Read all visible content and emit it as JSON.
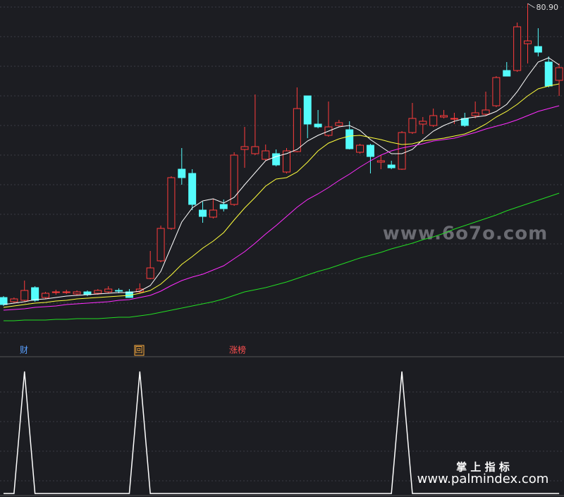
{
  "chart_data": {
    "type": "candlestick",
    "ylim": [
      30.9,
      81.4
    ],
    "up_color": "#ff3c3c",
    "down_color": "#54fcfc",
    "open": [
      39.2,
      38.6,
      38.8,
      40.6,
      39.2,
      39.9,
      39.9,
      39.7,
      40.0,
      39.8,
      40.0,
      40.2,
      40.0,
      40.0,
      41.9,
      44.4,
      49.0,
      57.4,
      56.8,
      51.6,
      50.6,
      52.4,
      52.4,
      60.2,
      59.6,
      58.8,
      59.6,
      57.0,
      59.9,
      67.8,
      63.8,
      62.2,
      63.6,
      63.0,
      59.8,
      60.8,
      58.4,
      58.0,
      57.4,
      62.6,
      63.8,
      63.6,
      64.8,
      64.6,
      64.6,
      65.0,
      65.2,
      66.4,
      71.4,
      71.4,
      75.2,
      74.8,
      72.6,
      70.0
    ],
    "high": [
      39.4,
      39.2,
      41.6,
      40.8,
      40.0,
      40.3,
      40.3,
      40.2,
      40.2,
      40.4,
      40.8,
      40.5,
      40.4,
      41.2,
      45.8,
      49.4,
      56.4,
      60.4,
      57.4,
      52.8,
      53.2,
      53.1,
      59.8,
      63.4,
      68.0,
      60.9,
      60.2,
      60.4,
      69.0,
      67.8,
      65.8,
      67.0,
      64.4,
      64.2,
      61.0,
      61.0,
      59.4,
      58.6,
      62.8,
      66.8,
      64.8,
      66.0,
      65.8,
      65.4,
      65.4,
      67.0,
      68.4,
      70.6,
      72.6,
      78.2,
      80.9,
      77.4,
      73.4,
      72.4
    ],
    "low": [
      38.0,
      38.4,
      38.6,
      38.6,
      39.0,
      39.6,
      39.7,
      39.5,
      39.4,
      39.6,
      39.8,
      39.8,
      39.2,
      39.8,
      41.8,
      44.2,
      48.8,
      55.2,
      51.6,
      49.8,
      50.4,
      51.4,
      52.2,
      57.6,
      59.4,
      58.6,
      57.8,
      56.8,
      59.8,
      61.8,
      63.2,
      62.0,
      63.4,
      60.2,
      59.6,
      56.8,
      57.4,
      57.4,
      57.3,
      62.4,
      62.4,
      63.4,
      64.6,
      63.8,
      63.4,
      64.6,
      65.0,
      66.2,
      70.6,
      71.2,
      72.4,
      73.4,
      69.0,
      67.8
    ],
    "close": [
      38.2,
      39.0,
      40.2,
      38.8,
      39.8,
      40.0,
      40.0,
      40.0,
      39.6,
      40.2,
      40.4,
      40.1,
      39.2,
      40.4,
      43.4,
      49.0,
      56.2,
      56.2,
      52.4,
      50.7,
      51.6,
      51.8,
      59.4,
      60.6,
      60.6,
      60.0,
      58.0,
      60.0,
      66.0,
      63.8,
      63.4,
      63.4,
      64.0,
      60.3,
      60.8,
      59.2,
      58.6,
      57.6,
      62.6,
      64.6,
      64.2,
      65.0,
      65.0,
      64.6,
      63.6,
      65.4,
      65.8,
      70.4,
      70.6,
      77.6,
      75.6,
      74.0,
      69.2,
      71.8
    ],
    "lines": [
      {
        "color": "#ffffff",
        "values": [
          38.2,
          38.4,
          38.6,
          38.9,
          39.0,
          39.2,
          39.4,
          39.5,
          39.6,
          39.7,
          39.8,
          39.9,
          39.9,
          40.1,
          40.9,
          42.9,
          46.4,
          49.9,
          51.9,
          52.9,
          53.2,
          52.6,
          53.4,
          55.2,
          56.9,
          58.6,
          59.2,
          59.6,
          60.2,
          61.4,
          62.2,
          62.8,
          63.4,
          63.6,
          62.9,
          61.6,
          60.6,
          59.6,
          59.6,
          60.2,
          61.6,
          62.8,
          63.6,
          64.2,
          64.6,
          64.8,
          65.0,
          65.6,
          66.6,
          68.4,
          70.6,
          72.6,
          73.2,
          72.2
        ]
      },
      {
        "color": "#ffff3c",
        "values": [
          37.8,
          38.0,
          38.2,
          38.4,
          38.5,
          38.7,
          38.8,
          39.0,
          39.1,
          39.2,
          39.3,
          39.4,
          39.5,
          39.8,
          40.2,
          41.1,
          42.4,
          43.9,
          45.0,
          46.2,
          47.2,
          48.4,
          50.2,
          51.9,
          53.4,
          55.0,
          56.0,
          56.2,
          57.0,
          58.4,
          60.0,
          61.1,
          61.7,
          62.1,
          62.2,
          61.9,
          61.6,
          61.2,
          60.9,
          61.0,
          61.4,
          61.6,
          61.8,
          62.1,
          62.4,
          63.0,
          63.8,
          64.8,
          65.6,
          66.6,
          67.8,
          68.8,
          69.2,
          69.5
        ]
      },
      {
        "color": "#ff2cff",
        "values": [
          37.4,
          37.5,
          37.6,
          37.8,
          37.9,
          38.0,
          38.2,
          38.3,
          38.4,
          38.5,
          38.6,
          38.8,
          38.9,
          39.2,
          39.5,
          40.1,
          40.9,
          41.6,
          42.1,
          42.5,
          43.1,
          43.7,
          44.7,
          45.7,
          46.9,
          48.2,
          49.4,
          50.7,
          52.0,
          53.1,
          53.9,
          54.8,
          55.8,
          56.7,
          57.7,
          58.6,
          59.4,
          60.0,
          60.4,
          60.7,
          61.0,
          61.4,
          61.6,
          61.8,
          62.2,
          62.6,
          63.1,
          63.5,
          63.9,
          64.4,
          65.0,
          65.6,
          66.0,
          66.4
        ]
      },
      {
        "color": "#22dd22",
        "values": [
          35.9,
          35.9,
          36.0,
          36.0,
          36.0,
          36.1,
          36.1,
          36.2,
          36.2,
          36.2,
          36.3,
          36.4,
          36.4,
          36.6,
          36.8,
          37.1,
          37.4,
          37.7,
          38.0,
          38.3,
          38.6,
          39.0,
          39.5,
          40.0,
          40.3,
          40.6,
          41.0,
          41.4,
          41.9,
          42.4,
          42.9,
          43.3,
          43.8,
          44.3,
          44.8,
          45.2,
          45.6,
          46.1,
          46.5,
          46.9,
          47.4,
          47.8,
          48.3,
          48.9,
          49.4,
          49.9,
          50.4,
          50.9,
          51.5,
          52.0,
          52.5,
          53.0,
          53.5,
          54.0
        ]
      }
    ],
    "max_label": {
      "value": 80.9,
      "label": "80.90"
    },
    "markers": [
      {
        "text": "财",
        "color": "#5aa0ff"
      },
      {
        "text": "回",
        "color": "#ffb040"
      },
      {
        "text": "涨榜",
        "color": "#ff5050"
      }
    ],
    "signal_panel": {
      "type": "line",
      "color": "#ffffff",
      "ylim": [
        0,
        1
      ],
      "values": [
        0,
        0,
        1,
        0,
        0,
        0,
        0,
        0,
        0,
        0,
        0,
        0,
        0,
        1,
        0,
        0,
        0,
        0,
        0,
        0,
        0,
        0,
        0,
        0,
        0,
        0,
        0,
        0,
        0,
        0,
        0,
        0,
        0,
        0,
        0,
        0,
        0,
        0,
        1,
        0,
        0,
        0,
        0,
        0,
        0,
        0,
        0,
        0,
        0,
        0,
        0,
        0,
        0,
        0
      ]
    }
  },
  "watermarks": {
    "site": "www.6o7o.com",
    "brand": "掌 上 指 标",
    "url": "www.palmindex.com"
  }
}
